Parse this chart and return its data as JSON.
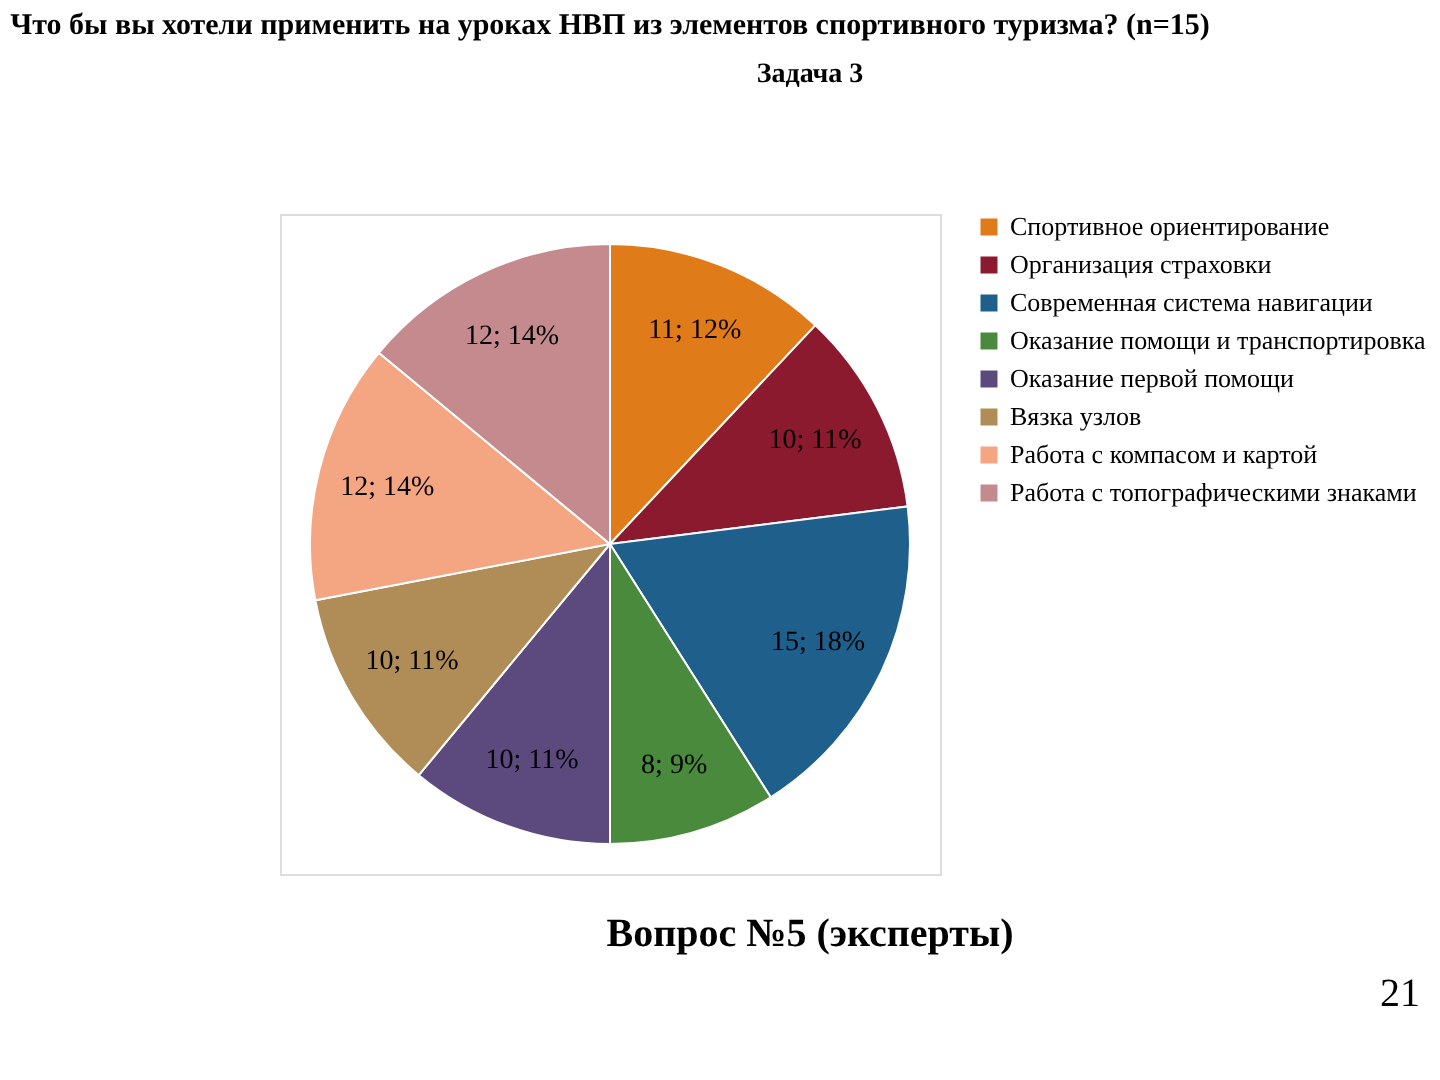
{
  "chart_data": {
    "type": "pie",
    "title": "Что бы вы хотели применить на уроках НВП из элементов спортивного туризма? (n=15)",
    "categories": [
      "Спортивное ориентирование",
      "Организация страховки",
      "Современная система навигации",
      "Оказание помощи и транспортировка",
      "Оказание первой помощи",
      "Вязка узлов",
      "Работа с компасом и картой",
      "Работа с топографическими знаками"
    ],
    "values": [
      12,
      11,
      18,
      9,
      11,
      11,
      14,
      14
    ],
    "value_labels": [
      "11; 12%",
      "10; 11%",
      "15; 18%",
      "8; 9%",
      "10; 11%",
      "10; 11%",
      "12; 14%",
      "12; 14%"
    ],
    "colors": [
      "#e07b1a",
      "#8b1a2e",
      "#1f5f8b",
      "#4a8a3c",
      "#5c4a7e",
      "#b08d57",
      "#f4a582",
      "#c48a8e"
    ],
    "legend": "right",
    "annotations": [
      "Задача 3",
      "Вопрос №5 (эксперты)",
      "21"
    ]
  }
}
